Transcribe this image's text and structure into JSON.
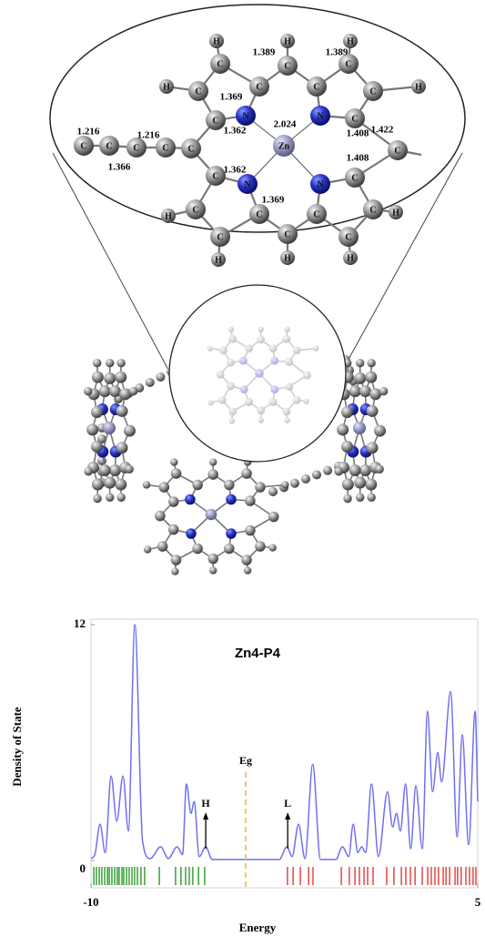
{
  "zoom": {
    "atoms": [
      "Zn",
      "N",
      "N",
      "N",
      "N",
      "C",
      "C",
      "C",
      "C",
      "C",
      "C",
      "C",
      "C",
      "C",
      "C",
      "C",
      "C",
      "C",
      "C",
      "C",
      "C",
      "C",
      "C",
      "C",
      "C",
      "C",
      "C",
      "C",
      "C",
      "H",
      "H",
      "H",
      "H",
      "H",
      "H",
      "H",
      "H",
      "H",
      "H"
    ],
    "bond_lengths": [
      "1.389",
      "1.389",
      "1.369",
      "2.024",
      "1.362",
      "1.408",
      "1.422",
      "1.408",
      "1.362",
      "1.369",
      "1.216",
      "1.216",
      "1.366"
    ]
  },
  "chart_data": {
    "type": "line",
    "title": "Zn4-P4",
    "xlabel": "Energy",
    "ylabel": "Density of State",
    "x": [
      -10,
      -9.85,
      -9.65,
      -9.45,
      -9.22,
      -9.0,
      -8.76,
      -8.55,
      -8.3,
      -8.0,
      -7.7,
      -7.3,
      -7.0,
      -6.66,
      -6.45,
      -6.3,
      -6.12,
      -6.0,
      -5.8,
      -5.55,
      -5.3,
      -2.7,
      -2.4,
      -2.2,
      -1.95,
      -1.7,
      -1.4,
      -1.1,
      -0.5,
      -0.25,
      0.0,
      0.17,
      0.35,
      0.5,
      0.65,
      0.88,
      1.15,
      1.5,
      1.7,
      1.85,
      2.0,
      2.2,
      2.4,
      2.6,
      2.85,
      3.05,
      3.25,
      3.45,
      3.6,
      3.95,
      4.2,
      4.4,
      4.65,
      4.9,
      5.0
    ],
    "series": [
      {
        "color": "#6f6ff2",
        "values": [
          0.1,
          0.3,
          1.85,
          0.4,
          4.3,
          2.0,
          4.3,
          1.5,
          12,
          1.0,
          0.1,
          0.7,
          0.1,
          0.7,
          0.3,
          3.9,
          2.4,
          3.0,
          0.2,
          0.7,
          0.05,
          0.05,
          0.7,
          0.2,
          1.85,
          0.1,
          4.9,
          0.05,
          0.05,
          0.7,
          0.2,
          1.85,
          0.4,
          0.7,
          0.4,
          3.9,
          0.2,
          3.5,
          1.7,
          2.4,
          1.5,
          3.9,
          0.6,
          3.8,
          0.6,
          7.6,
          3.5,
          5.5,
          4.0,
          8.6,
          1.2,
          6.4,
          0.8,
          7.6,
          3.0
        ]
      }
    ],
    "occupied_levels": {
      "color": "#2a9a2a",
      "x": [
        -9.89,
        -9.79,
        -9.68,
        -9.58,
        -9.47,
        -9.36,
        -9.29,
        -9.19,
        -9.08,
        -8.98,
        -8.91,
        -8.8,
        -8.73,
        -8.62,
        -8.52,
        -8.41,
        -8.31,
        -8.2,
        -8.06,
        -7.92,
        -7.35,
        -6.72,
        -6.51,
        -6.33,
        -6.19,
        -6.05,
        -5.83,
        -5.59
      ]
    },
    "unoccupied_levels": {
      "color": "#e23a3a",
      "x": [
        -2.38,
        -2.16,
        -1.88,
        -1.56,
        -1.39,
        -0.29,
        0.02,
        0.24,
        0.41,
        0.59,
        0.73,
        0.94,
        1.47,
        1.75,
        2.04,
        2.21,
        2.39,
        2.57,
        2.85,
        3.06,
        3.2,
        3.34,
        3.48,
        3.66,
        3.77,
        3.91,
        4.12,
        4.22,
        4.36,
        4.54,
        4.68,
        4.82,
        4.93
      ]
    },
    "annotations": [
      {
        "text": "H",
        "x": -5.55
      },
      {
        "text": "L",
        "x": -2.37
      },
      {
        "text": "Eg",
        "x": -4.0,
        "color": "#f5b73b"
      }
    ],
    "xlim": [
      -10,
      5
    ],
    "xticks": [
      -10,
      5
    ],
    "ylim": [
      0,
      12
    ],
    "yticks": [
      0,
      12
    ]
  }
}
